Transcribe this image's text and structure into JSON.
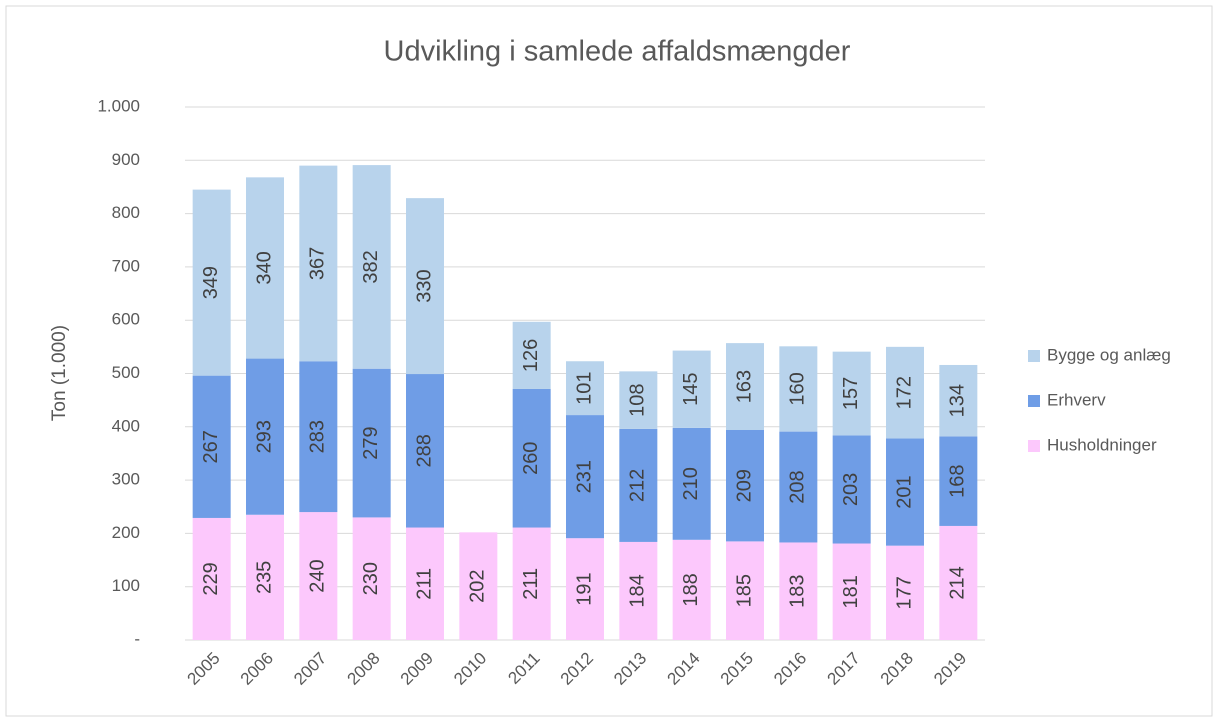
{
  "chart_data": {
    "type": "stacked_bar",
    "title": "Udvikling i samlede affaldsmængder",
    "y_label": "Ton (1.000)",
    "categories": [
      "2005",
      "2006",
      "2007",
      "2008",
      "2009",
      "2010",
      "2011",
      "2012",
      "2013",
      "2014",
      "2015",
      "2016",
      "2017",
      "2018",
      "2019"
    ],
    "series": [
      {
        "name": "Husholdninger",
        "color": "#fcc8fc",
        "values": [
          229,
          235,
          240,
          230,
          211,
          202,
          211,
          191,
          184,
          188,
          185,
          183,
          181,
          177,
          214
        ]
      },
      {
        "name": "Erhverv",
        "color": "#6f9de6",
        "values": [
          267,
          293,
          283,
          279,
          288,
          null,
          260,
          231,
          212,
          210,
          209,
          208,
          203,
          201,
          168
        ]
      },
      {
        "name": "Bygge og anlæg",
        "color": "#b8d3ec",
        "values": [
          349,
          340,
          367,
          382,
          330,
          null,
          126,
          101,
          108,
          145,
          163,
          160,
          157,
          172,
          134
        ]
      }
    ],
    "ylim": [
      0,
      1000
    ],
    "yticks": [
      {
        "value": 0,
        "label": "-"
      },
      100,
      200,
      300,
      400,
      500,
      600,
      700,
      800,
      900,
      {
        "value": 1000,
        "label": "1.000"
      }
    ],
    "grid": true,
    "legend": "right"
  }
}
